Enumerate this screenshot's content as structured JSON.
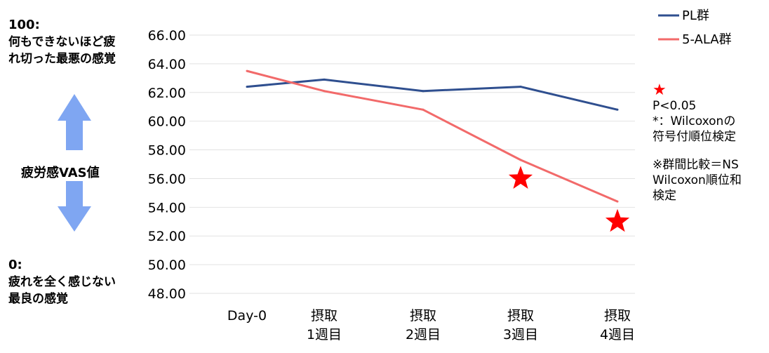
{
  "left_panel": {
    "top_value": "100:",
    "top_lines": [
      "何もできないほど疲",
      "れ切った最悪の感覚"
    ],
    "center_label": "疲労感VAS値",
    "bottom_value": "0:",
    "bottom_lines": [
      "疲れを全く感じない",
      "最良の感覚"
    ],
    "arrow_color": "#7fa6f2"
  },
  "notes": {
    "star_symbol": "★",
    "significance_lines": [
      "P<0.05",
      "*：Wilcoxonの",
      "符号付順位検定"
    ],
    "group_lines": [
      "※群間比較＝NS",
      "Wilcoxon順位和",
      "検定"
    ]
  },
  "chart_data": {
    "type": "line",
    "categories": [
      [
        "Day-0"
      ],
      [
        "摂取",
        "1週目"
      ],
      [
        "摂取",
        "2週目"
      ],
      [
        "摂取",
        "3週目"
      ],
      [
        "摂取",
        "4週目"
      ]
    ],
    "ylim": [
      48,
      66
    ],
    "yticks": [
      "48.00",
      "50.00",
      "52.00",
      "54.00",
      "56.00",
      "58.00",
      "60.00",
      "62.00",
      "64.00",
      "66.00"
    ],
    "grid": true,
    "legend_position": "top-right",
    "series": [
      {
        "name": "PL群",
        "color": "#2f4f8f",
        "values": [
          62.4,
          62.9,
          62.1,
          62.4,
          60.8
        ]
      },
      {
        "name": "5-ALA群",
        "color": "#f26a6a",
        "values": [
          63.5,
          62.1,
          60.8,
          57.3,
          54.4
        ]
      }
    ],
    "significance_markers": [
      {
        "category_index": 3,
        "y": 56.0,
        "symbol": "★",
        "color": "#ff0000"
      },
      {
        "category_index": 4,
        "y": 53.0,
        "symbol": "★",
        "color": "#ff0000"
      }
    ]
  }
}
